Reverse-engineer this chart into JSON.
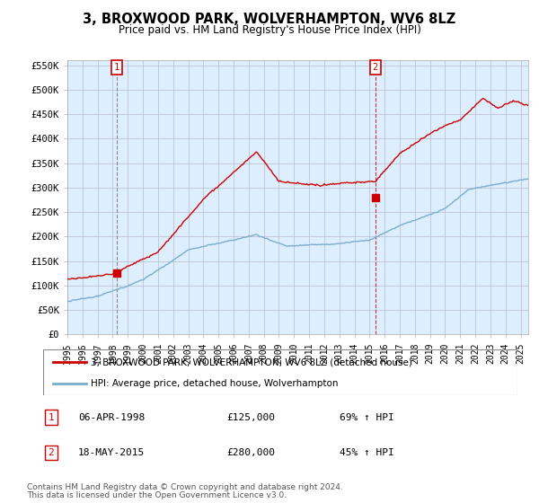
{
  "title": "3, BROXWOOD PARK, WOLVERHAMPTON, WV6 8LZ",
  "subtitle": "Price paid vs. HM Land Registry's House Price Index (HPI)",
  "legend_line1": "3, BROXWOOD PARK, WOLVERHAMPTON, WV6 8LZ (detached house)",
  "legend_line2": "HPI: Average price, detached house, Wolverhampton",
  "annotation1_date": "06-APR-1998",
  "annotation1_price": "£125,000",
  "annotation1_hpi": "69% ↑ HPI",
  "annotation2_date": "18-MAY-2015",
  "annotation2_price": "£280,000",
  "annotation2_hpi": "45% ↑ HPI",
  "footnote1": "Contains HM Land Registry data © Crown copyright and database right 2024.",
  "footnote2": "This data is licensed under the Open Government Licence v3.0.",
  "red_line_color": "#cc0000",
  "blue_line_color": "#7aadcf",
  "background_color": "#ffffff",
  "plot_bg_color": "#ddeeff",
  "grid_color": "#bbbbcc",
  "ylim": [
    0,
    560000
  ],
  "yticks": [
    0,
    50000,
    100000,
    150000,
    200000,
    250000,
    300000,
    350000,
    400000,
    450000,
    500000,
    550000
  ],
  "ytick_labels": [
    "£0",
    "£50K",
    "£100K",
    "£150K",
    "£200K",
    "£250K",
    "£300K",
    "£350K",
    "£400K",
    "£450K",
    "£500K",
    "£550K"
  ],
  "sale1_x": 1998.27,
  "sale1_y": 125000,
  "sale2_x": 2015.38,
  "sale2_y": 280000,
  "xmin": 1995.0,
  "xmax": 2025.5
}
